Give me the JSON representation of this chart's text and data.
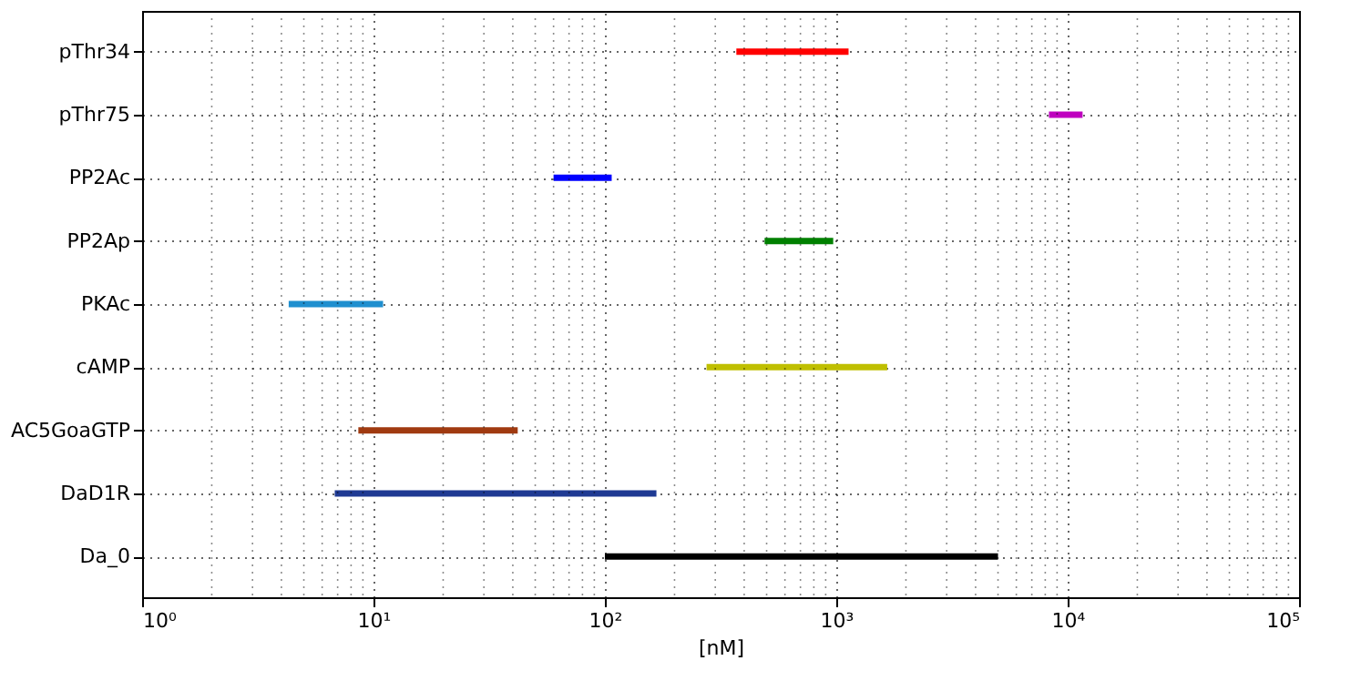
{
  "chart_data": {
    "type": "bar",
    "orientation": "horizontal",
    "log": "x",
    "xlabel": "[nM]",
    "categories": [
      "pThr34",
      "pThr75",
      "PP2Ac",
      "PP2Ap",
      "PKAc",
      "cAMP",
      "AC5GoaGTP",
      "DaD1R",
      "Da_0"
    ],
    "base": [
      370,
      8300,
      60,
      490,
      4.3,
      275,
      8.6,
      6.8,
      100
    ],
    "values": [
      760,
      3300,
      47,
      480,
      6.7,
      1385,
      33.4,
      160.2,
      4900
    ],
    "colors": [
      "#ff0000",
      "#bf00bf",
      "#0000ff",
      "#008000",
      "#1f8fcf",
      "#bfbf00",
      "#a03a10",
      "#1f3a93",
      "#000000"
    ],
    "xlim": [
      1,
      100000
    ],
    "xticks": [
      {
        "value": 1,
        "label": "10⁰"
      },
      {
        "value": 10,
        "label": "10¹"
      },
      {
        "value": 100,
        "label": "10²"
      },
      {
        "value": 1000,
        "label": "10³"
      },
      {
        "value": 10000,
        "label": "10⁴"
      },
      {
        "value": 100000,
        "label": "10⁵"
      }
    ],
    "grid": true
  }
}
